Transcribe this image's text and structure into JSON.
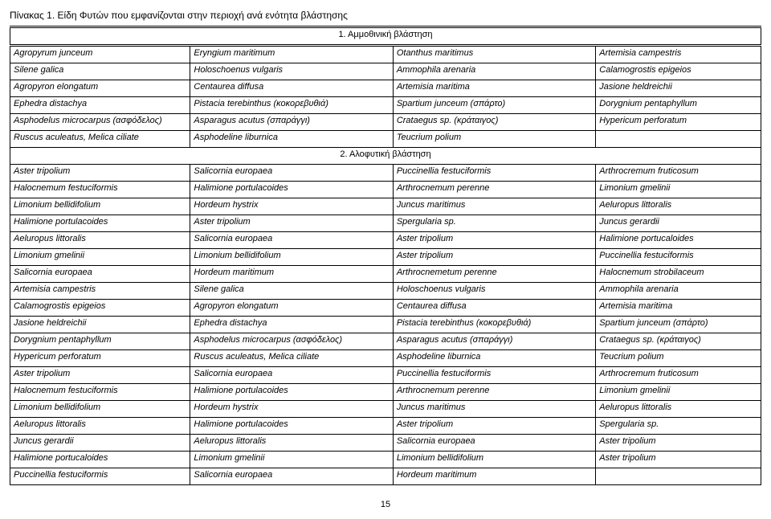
{
  "title": "Πίνακας 1. Είδη Φυτών που εμφανίζονται στην περιοχή ανά ενότητα βλάστησης",
  "section1_header": "1. Αμμοθινική βλάστηση",
  "section2_header": "2. Αλοφυτική βλάστηση",
  "page_number": "15",
  "s1": [
    [
      "Agropyrum junceum",
      "Eryngium maritimum",
      "Otanthus maritimus",
      "Artemisia campestris"
    ],
    [
      "Silene galica",
      "Holoschoenus vulgaris",
      "Ammophila arenaria",
      "Calamogrostis epigeios"
    ],
    [
      "Agropyron elongatum",
      "Centaurea diffusa",
      "Artemisia maritima",
      "Jasione heldreichii"
    ],
    [
      "Ephedra distachya",
      "Pistacia terebinthus (κοκορεβυθιά)",
      "Spartium junceum (σπάρτο)",
      "Dorygnium pentaphyllum"
    ],
    [
      "Asphodelus microcarpus (ασφόδελος)",
      "Asparagus acutus (σπαράγγι)",
      "Crataegus sp. (κράταιγος)",
      "Hypericum perforatum"
    ],
    [
      "Ruscus aculeatus, Melica ciliate",
      "Asphodeline liburnica",
      "Teucrium polium",
      ""
    ]
  ],
  "s2": [
    [
      "Aster tripolium",
      "Salicornia europaea",
      "Puccinellia festuciformis",
      "Arthrocremum fruticosum"
    ],
    [
      "Halocnemum festuciformis",
      "Halimione portulacoides",
      "Arthrocnemum perenne",
      "Limonium gmelinii"
    ],
    [
      "Limonium bellidifolium",
      "Hordeum hystrix",
      "Juncus maritimus",
      "Aeluropus littoralis"
    ],
    [
      "Halimione portulacoides",
      "Aster tripolium",
      "Spergularia sp.",
      "Juncus gerardii"
    ],
    [
      "Aeluropus littoralis",
      "Salicornia europaea",
      "Aster tripolium",
      "Halimione portucaloides"
    ],
    [
      "Limonium gmelinii",
      "Limonium bellidifolium",
      "Aster tripolium",
      "Puccinellia festuciformis"
    ],
    [
      "Salicornia europaea",
      "Hordeum maritimum",
      "Arthrocnemetum perenne",
      "Halocnemum strobilaceum"
    ],
    [
      "Artemisia campestris",
      "Silene galica",
      "Holoschoenus vulgaris",
      "Ammophila arenaria"
    ],
    [
      "Calamogrostis epigeios",
      "Agropyron elongatum",
      "Centaurea diffusa",
      "Artemisia maritima"
    ],
    [
      "Jasione heldreichii",
      "Ephedra distachya",
      "Pistacia terebinthus (κοκορεβυθιά)",
      "Spartium junceum (σπάρτο)"
    ],
    [
      "Dorygnium pentaphyllum",
      "Asphodelus microcarpus (ασφόδελος)",
      "Asparagus acutus (σπαράγγι)",
      "Crataegus sp. (κράταιγος)"
    ],
    [
      "Hypericum perforatum",
      "Ruscus aculeatus, Melica ciliate",
      "Asphodeline liburnica",
      "Teucrium polium"
    ],
    [
      "Aster tripolium",
      "Salicornia europaea",
      "Puccinellia festuciformis",
      "Arthrocremum fruticosum"
    ],
    [
      "Halocnemum festuciformis",
      "Halimione portulacoides",
      "Arthrocnemum perenne",
      "Limonium gmelinii"
    ],
    [
      "Limonium bellidifolium",
      "Hordeum hystrix",
      "Juncus maritimus",
      "Aeluropus littoralis"
    ],
    [
      "Aeluropus littoralis",
      "Halimione portulacoides",
      "Aster tripolium",
      "Spergularia sp."
    ],
    [
      "Juncus gerardii",
      "Aeluropus littoralis",
      "Salicornia europaea",
      "Aster tripolium"
    ],
    [
      "Halimione portucaloides",
      "Limonium gmelinii",
      "Limonium bellidifolium",
      "Aster tripolium"
    ],
    [
      "Puccinellia festuciformis",
      "Salicornia europaea",
      "Hordeum maritimum",
      ""
    ]
  ]
}
